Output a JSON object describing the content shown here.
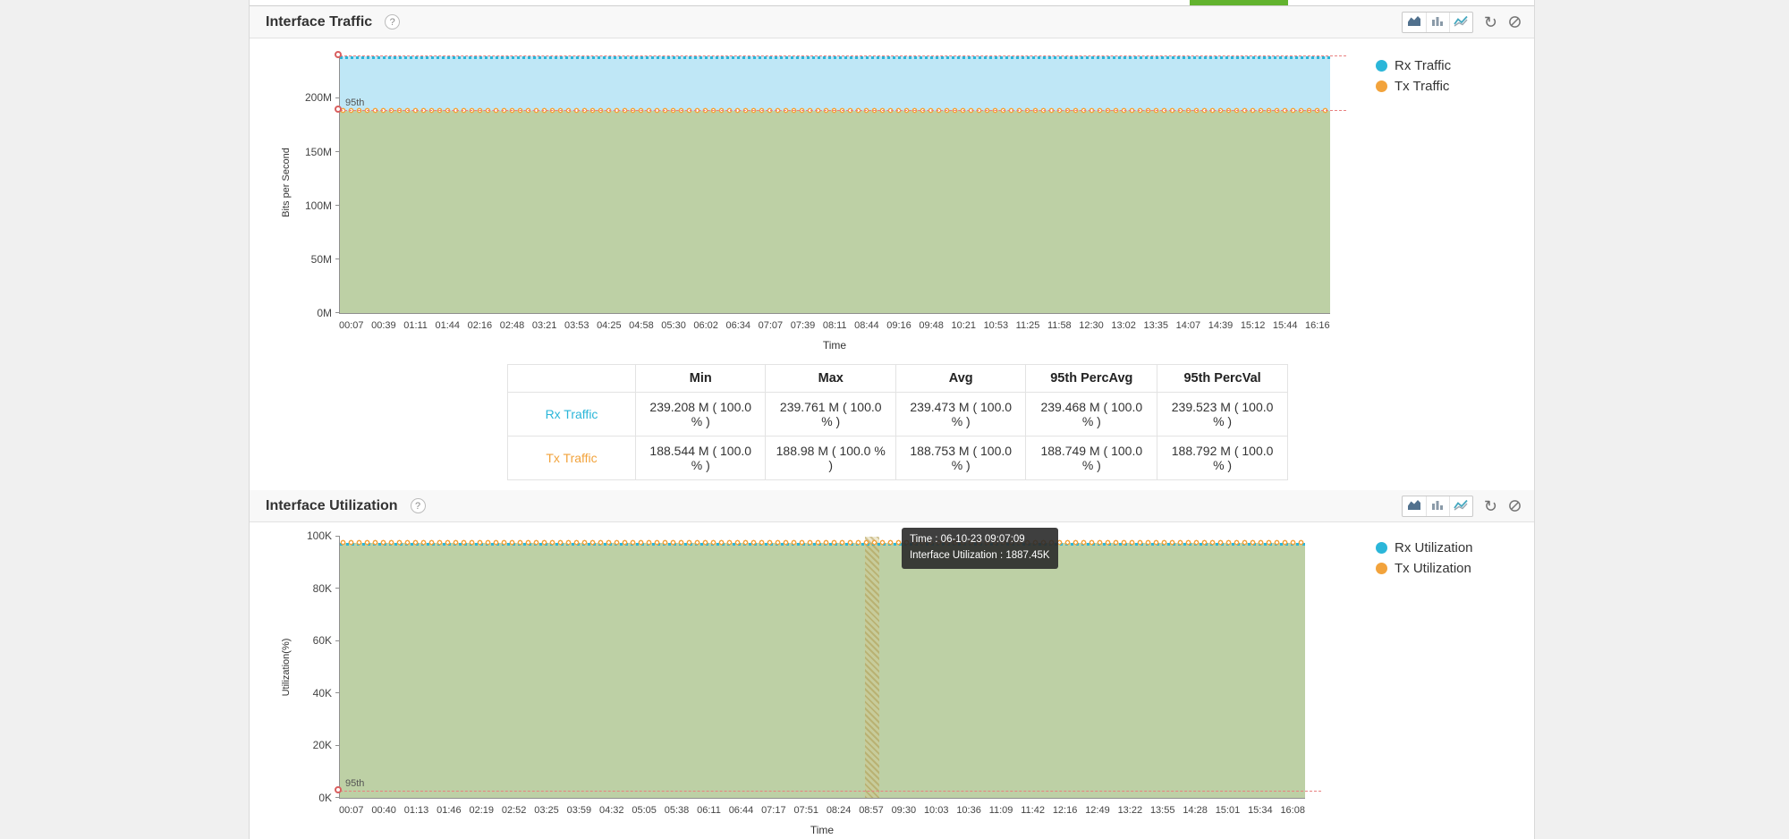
{
  "page": {
    "background": "#f0f0f0",
    "container_background": "#ffffff",
    "active_tab_color": "#62b32e"
  },
  "traffic_panel": {
    "title": "Interface Traffic",
    "help_label": "?",
    "toolbar_icons": [
      "area-chart-icon",
      "bar-chart-icon",
      "line-chart-icon",
      "refresh-icon",
      "clear-icon"
    ],
    "legend": [
      {
        "label": "Rx Traffic",
        "color": "#2bb6d9"
      },
      {
        "label": "Tx Traffic",
        "color": "#f2a33c"
      }
    ],
    "stats_table": {
      "columns": [
        "",
        "Min",
        "Max",
        "Avg",
        "95th PercAvg",
        "95th PercVal"
      ],
      "rows": [
        {
          "label": "Rx Traffic",
          "color": "#2bb6d9",
          "values": [
            "239.208 M ( 100.0 % )",
            "239.761 M ( 100.0 % )",
            "239.473 M ( 100.0 % )",
            "239.468 M ( 100.0 % )",
            "239.523 M ( 100.0 % )"
          ]
        },
        {
          "label": "Tx Traffic",
          "color": "#f2a33c",
          "values": [
            "188.544 M ( 100.0 % )",
            "188.98 M ( 100.0 % )",
            "188.753 M ( 100.0 % )",
            "188.749 M ( 100.0 % )",
            "188.792 M ( 100.0 % )"
          ]
        }
      ]
    }
  },
  "utilization_panel": {
    "title": "Interface Utilization",
    "help_label": "?",
    "toolbar_icons": [
      "area-chart-icon",
      "bar-chart-icon",
      "line-chart-icon",
      "refresh-icon",
      "clear-icon"
    ],
    "legend": [
      {
        "label": "Rx Utilization",
        "color": "#2bb6d9"
      },
      {
        "label": "Tx Utilization",
        "color": "#f2a33c"
      }
    ],
    "tooltip": {
      "line1": "Time : 06-10-23 09:07:09",
      "line2": "Interface Utilization : 1887.45K"
    }
  },
  "chart_data": [
    {
      "type": "area",
      "title": "Interface Traffic",
      "xlabel": "Time",
      "ylabel": "Bits per Second",
      "unit": "bits per second (M = 10^6)",
      "ylim": [
        0,
        243.5
      ],
      "grid": false,
      "legend_position": "right",
      "yticks": [
        {
          "value": 0,
          "label": "0M"
        },
        {
          "value": 50,
          "label": "50M"
        },
        {
          "value": 100,
          "label": "100M"
        },
        {
          "value": 150,
          "label": "150M"
        },
        {
          "value": 200,
          "label": "200M"
        }
      ],
      "categories": [
        "00:07",
        "00:39",
        "01:11",
        "01:44",
        "02:16",
        "02:48",
        "03:21",
        "03:53",
        "04:25",
        "04:58",
        "05:30",
        "06:02",
        "06:34",
        "07:07",
        "07:39",
        "08:11",
        "08:44",
        "09:16",
        "09:48",
        "10:21",
        "10:53",
        "11:25",
        "11:58",
        "12:30",
        "13:02",
        "13:35",
        "14:07",
        "14:39",
        "15:12",
        "15:44",
        "16:16"
      ],
      "series": [
        {
          "name": "Rx Traffic",
          "shape": "flat",
          "constant_value": 239.47,
          "min": 239.208,
          "max": 239.761,
          "avg": 239.473,
          "p95_avg": 239.468,
          "p95_val": 239.523,
          "line_color": "#2bb6d9",
          "fill_color": "#bfe7f6",
          "line_style": "dotted"
        },
        {
          "name": "Tx Traffic",
          "shape": "flat",
          "constant_value": 188.75,
          "min": 188.544,
          "max": 188.98,
          "avg": 188.753,
          "p95_avg": 188.749,
          "p95_val": 188.792,
          "line_color": "#f2a33c",
          "fill_color": "#bdd0a5",
          "line_style": "dotted-circles"
        }
      ],
      "percentile_color": "#e98080",
      "percentile_markers": [
        {
          "label": "95th",
          "value": 239.52,
          "show_label": false
        },
        {
          "label": "95th",
          "value": 188.79,
          "show_label": true
        }
      ]
    },
    {
      "type": "area",
      "title": "Interface Utilization",
      "xlabel": "Time",
      "ylabel": "Utilization(%)",
      "unit": "K",
      "ylim": [
        0,
        100
      ],
      "grid": false,
      "legend_position": "right",
      "yticks": [
        {
          "value": 0,
          "label": "0K"
        },
        {
          "value": 20,
          "label": "20K"
        },
        {
          "value": 40,
          "label": "40K"
        },
        {
          "value": 60,
          "label": "60K"
        },
        {
          "value": 80,
          "label": "80K"
        },
        {
          "value": 100,
          "label": "100K"
        }
      ],
      "categories": [
        "00:07",
        "00:40",
        "01:13",
        "01:46",
        "02:19",
        "02:52",
        "03:25",
        "03:59",
        "04:32",
        "05:05",
        "05:38",
        "06:11",
        "06:44",
        "07:17",
        "07:51",
        "08:24",
        "08:57",
        "09:30",
        "10:03",
        "10:36",
        "11:09",
        "11:42",
        "12:16",
        "12:49",
        "13:22",
        "13:55",
        "14:28",
        "15:01",
        "15:34",
        "16:08"
      ],
      "series": [
        {
          "name": "Rx Utilization",
          "shape": "flat",
          "constant_value": 97.5,
          "line_color": "#2bb6d9",
          "fill_color": "#bdd0a5",
          "line_style": "dotted"
        },
        {
          "name": "Tx Utilization",
          "shape": "flat",
          "constant_value": 97.5,
          "line_color": "#f2a33c",
          "fill_color": "#bdd0a5",
          "line_style": "dotted-circles"
        }
      ],
      "percentile_color": "#e98080",
      "percentile_markers": [
        {
          "label": "95th",
          "value": 2.5,
          "show_label": true
        }
      ],
      "hover_band_category": "08:57",
      "tooltip": {
        "time": "06-10-23 09:07:09",
        "value": "1887.45K"
      }
    }
  ]
}
